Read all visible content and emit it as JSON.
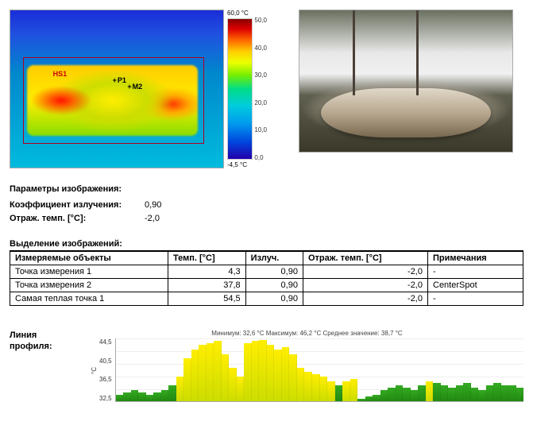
{
  "thermal": {
    "markers": {
      "hs1": "HS1",
      "p1": "P1",
      "m2": "M2"
    },
    "colorbar": {
      "top_label": "60,0 °C",
      "bottom_label": "-4,5 °C",
      "ticks": [
        "50,0",
        "40,0",
        "30,0",
        "20,0",
        "10,0",
        "0,0"
      ]
    }
  },
  "params": {
    "title": "Параметры изображения:",
    "rows": [
      {
        "label": "Коэффициент излучения:",
        "value": "0,90"
      },
      {
        "label": "Отраж. темп. [°C]:",
        "value": "-2,0"
      }
    ]
  },
  "table": {
    "title": "Выделение изображений:",
    "headers": [
      "Измеряемые объекты",
      "Темп. [°C]",
      "Излуч.",
      "Отраж. темп. [°C]",
      "Примечания"
    ],
    "rows": [
      [
        "Точка измерения 1",
        "4,3",
        "0,90",
        "-2,0",
        "-"
      ],
      [
        "Точка измерения 2",
        "37,8",
        "0,90",
        "-2,0",
        "CenterSpot"
      ],
      [
        "Самая теплая точка 1",
        "54,5",
        "0,90",
        "-2,0",
        "-"
      ]
    ]
  },
  "profile": {
    "label": "Линия профиля:",
    "stats": "Минимум: 32,6 °C Максимум: 46,2 °C Среднее значение: 38,7 °C",
    "yticks": [
      "44,5",
      "40,5",
      "36,5",
      "32,5"
    ],
    "ylabel": "°C",
    "range": {
      "min": 32.5,
      "max": 46.5
    },
    "values": [
      34.0,
      34.5,
      35.0,
      34.5,
      34.0,
      34.5,
      35.0,
      36.0,
      38.0,
      42.0,
      44.0,
      45.0,
      45.5,
      46.0,
      43.0,
      40.0,
      38.0,
      45.5,
      46.0,
      46.2,
      45.0,
      44.0,
      44.5,
      43.0,
      40.0,
      39.0,
      38.5,
      38.0,
      37.0,
      36.0,
      37.0,
      37.5,
      33.0,
      33.5,
      34.0,
      35.0,
      35.5,
      36.0,
      35.5,
      35.0,
      36.0,
      37.0,
      36.5,
      36.0,
      35.5,
      36.0,
      36.5,
      35.5,
      35.0,
      36.0,
      36.5,
      36.0,
      36.0,
      35.5
    ],
    "colors_threshold": 36.5,
    "colors": {
      "yellow": "#eedd00",
      "green": "#2a9922",
      "grid": "#e0e0e0",
      "bg": "#ffffff"
    }
  }
}
